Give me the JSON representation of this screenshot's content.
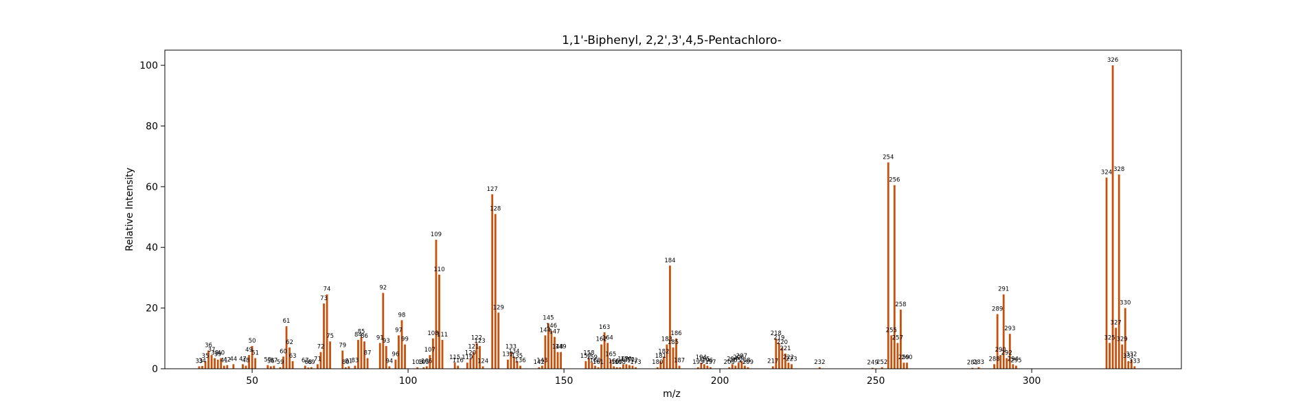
{
  "chart_data": {
    "type": "bar",
    "title": "1,1'-Biphenyl, 2,2',3',4,5-Pentachloro-",
    "xlabel": "m/z",
    "ylabel": "Relative Intensity",
    "xlim": [
      22,
      348
    ],
    "ylim": [
      0,
      105
    ],
    "xticks": [
      50,
      100,
      150,
      200,
      250,
      300
    ],
    "yticks": [
      0,
      20,
      40,
      60,
      80,
      100
    ],
    "grid": false,
    "colors": {
      "bar": "#c8500a"
    },
    "peaks": [
      {
        "mz": 33,
        "i": 0.8
      },
      {
        "mz": 34,
        "i": 0.9
      },
      {
        "mz": 35,
        "i": 2.5
      },
      {
        "mz": 36,
        "i": 6.0
      },
      {
        "mz": 37,
        "i": 4.5
      },
      {
        "mz": 38,
        "i": 3.5
      },
      {
        "mz": 39,
        "i": 3.0
      },
      {
        "mz": 40,
        "i": 3.5
      },
      {
        "mz": 41,
        "i": 1.0
      },
      {
        "mz": 42,
        "i": 1.2
      },
      {
        "mz": 44,
        "i": 1.5
      },
      {
        "mz": 47,
        "i": 1.5
      },
      {
        "mz": 48,
        "i": 1.0
      },
      {
        "mz": 49,
        "i": 4.5
      },
      {
        "mz": 50,
        "i": 7.5
      },
      {
        "mz": 51,
        "i": 3.5
      },
      {
        "mz": 55,
        "i": 1.2
      },
      {
        "mz": 56,
        "i": 0.8
      },
      {
        "mz": 57,
        "i": 1.0
      },
      {
        "mz": 59,
        "i": 0.5
      },
      {
        "mz": 60,
        "i": 4.0
      },
      {
        "mz": 61,
        "i": 14.0
      },
      {
        "mz": 62,
        "i": 7.0
      },
      {
        "mz": 63,
        "i": 2.5
      },
      {
        "mz": 67,
        "i": 1.0
      },
      {
        "mz": 68,
        "i": 0.4
      },
      {
        "mz": 69,
        "i": 0.5
      },
      {
        "mz": 71,
        "i": 1.5
      },
      {
        "mz": 72,
        "i": 5.5
      },
      {
        "mz": 73,
        "i": 21.5
      },
      {
        "mz": 74,
        "i": 24.5
      },
      {
        "mz": 75,
        "i": 9.0
      },
      {
        "mz": 79,
        "i": 6.0
      },
      {
        "mz": 80,
        "i": 0.5
      },
      {
        "mz": 81,
        "i": 0.8
      },
      {
        "mz": 83,
        "i": 1.0
      },
      {
        "mz": 84,
        "i": 9.5
      },
      {
        "mz": 85,
        "i": 10.5
      },
      {
        "mz": 86,
        "i": 9.0
      },
      {
        "mz": 87,
        "i": 3.5
      },
      {
        "mz": 91,
        "i": 8.5
      },
      {
        "mz": 92,
        "i": 25.0
      },
      {
        "mz": 93,
        "i": 7.5
      },
      {
        "mz": 94,
        "i": 0.8
      },
      {
        "mz": 96,
        "i": 3.0
      },
      {
        "mz": 97,
        "i": 11.0
      },
      {
        "mz": 98,
        "i": 16.0
      },
      {
        "mz": 99,
        "i": 8.0
      },
      {
        "mz": 103,
        "i": 0.5
      },
      {
        "mz": 105,
        "i": 0.5
      },
      {
        "mz": 106,
        "i": 0.8
      },
      {
        "mz": 107,
        "i": 4.5
      },
      {
        "mz": 108,
        "i": 10.0
      },
      {
        "mz": 109,
        "i": 42.5
      },
      {
        "mz": 110,
        "i": 31.0
      },
      {
        "mz": 111,
        "i": 9.5
      },
      {
        "mz": 115,
        "i": 2.0
      },
      {
        "mz": 116,
        "i": 1.0
      },
      {
        "mz": 119,
        "i": 2.0
      },
      {
        "mz": 120,
        "i": 3.5
      },
      {
        "mz": 121,
        "i": 5.5
      },
      {
        "mz": 122,
        "i": 8.5
      },
      {
        "mz": 123,
        "i": 7.5
      },
      {
        "mz": 124,
        "i": 0.8
      },
      {
        "mz": 127,
        "i": 57.5
      },
      {
        "mz": 128,
        "i": 51.0
      },
      {
        "mz": 129,
        "i": 18.5
      },
      {
        "mz": 132,
        "i": 3.0
      },
      {
        "mz": 133,
        "i": 5.5
      },
      {
        "mz": 134,
        "i": 4.0
      },
      {
        "mz": 135,
        "i": 2.5
      },
      {
        "mz": 136,
        "i": 1.0
      },
      {
        "mz": 142,
        "i": 0.5
      },
      {
        "mz": 143,
        "i": 1.0
      },
      {
        "mz": 144,
        "i": 11.0
      },
      {
        "mz": 145,
        "i": 15.0
      },
      {
        "mz": 146,
        "i": 12.5
      },
      {
        "mz": 147,
        "i": 10.5
      },
      {
        "mz": 148,
        "i": 5.5
      },
      {
        "mz": 149,
        "i": 5.5
      },
      {
        "mz": 157,
        "i": 2.5
      },
      {
        "mz": 158,
        "i": 3.5
      },
      {
        "mz": 159,
        "i": 2.0
      },
      {
        "mz": 160,
        "i": 1.0
      },
      {
        "mz": 161,
        "i": 0.5
      },
      {
        "mz": 162,
        "i": 8.0
      },
      {
        "mz": 163,
        "i": 12.0
      },
      {
        "mz": 164,
        "i": 8.5
      },
      {
        "mz": 165,
        "i": 3.0
      },
      {
        "mz": 166,
        "i": 0.8
      },
      {
        "mz": 167,
        "i": 0.5
      },
      {
        "mz": 168,
        "i": 0.5
      },
      {
        "mz": 169,
        "i": 1.5
      },
      {
        "mz": 170,
        "i": 1.5
      },
      {
        "mz": 171,
        "i": 1.2
      },
      {
        "mz": 172,
        "i": 1.0
      },
      {
        "mz": 173,
        "i": 0.5
      },
      {
        "mz": 180,
        "i": 0.5
      },
      {
        "mz": 181,
        "i": 2.5
      },
      {
        "mz": 182,
        "i": 4.0
      },
      {
        "mz": 183,
        "i": 8.0
      },
      {
        "mz": 184,
        "i": 34.0
      },
      {
        "mz": 185,
        "i": 7.0
      },
      {
        "mz": 186,
        "i": 10.0
      },
      {
        "mz": 187,
        "i": 1.0
      },
      {
        "mz": 193,
        "i": 0.5
      },
      {
        "mz": 194,
        "i": 2.0
      },
      {
        "mz": 195,
        "i": 1.5
      },
      {
        "mz": 196,
        "i": 1.0
      },
      {
        "mz": 197,
        "i": 0.5
      },
      {
        "mz": 203,
        "i": 0.5
      },
      {
        "mz": 204,
        "i": 1.5
      },
      {
        "mz": 205,
        "i": 1.0
      },
      {
        "mz": 206,
        "i": 2.0
      },
      {
        "mz": 207,
        "i": 2.5
      },
      {
        "mz": 208,
        "i": 1.0
      },
      {
        "mz": 209,
        "i": 0.5
      },
      {
        "mz": 217,
        "i": 0.8
      },
      {
        "mz": 218,
        "i": 10.0
      },
      {
        "mz": 219,
        "i": 8.5
      },
      {
        "mz": 220,
        "i": 7.0
      },
      {
        "mz": 221,
        "i": 5.0
      },
      {
        "mz": 222,
        "i": 2.0
      },
      {
        "mz": 223,
        "i": 1.5
      },
      {
        "mz": 232,
        "i": 0.5
      },
      {
        "mz": 249,
        "i": 0.3
      },
      {
        "mz": 252,
        "i": 0.5
      },
      {
        "mz": 254,
        "i": 68.0
      },
      {
        "mz": 255,
        "i": 11.0
      },
      {
        "mz": 256,
        "i": 60.5
      },
      {
        "mz": 257,
        "i": 8.5
      },
      {
        "mz": 258,
        "i": 19.5
      },
      {
        "mz": 259,
        "i": 2.0
      },
      {
        "mz": 260,
        "i": 2.0
      },
      {
        "mz": 281,
        "i": 0.3
      },
      {
        "mz": 283,
        "i": 0.5
      },
      {
        "mz": 288,
        "i": 1.5
      },
      {
        "mz": 289,
        "i": 18.0
      },
      {
        "mz": 290,
        "i": 4.5
      },
      {
        "mz": 291,
        "i": 24.5
      },
      {
        "mz": 292,
        "i": 3.5
      },
      {
        "mz": 293,
        "i": 11.5
      },
      {
        "mz": 294,
        "i": 1.5
      },
      {
        "mz": 295,
        "i": 1.0
      },
      {
        "mz": 324,
        "i": 63.0
      },
      {
        "mz": 325,
        "i": 8.5
      },
      {
        "mz": 326,
        "i": 100.0
      },
      {
        "mz": 327,
        "i": 13.5
      },
      {
        "mz": 328,
        "i": 64.0
      },
      {
        "mz": 329,
        "i": 8.0
      },
      {
        "mz": 330,
        "i": 20.0
      },
      {
        "mz": 331,
        "i": 2.5
      },
      {
        "mz": 332,
        "i": 3.0
      },
      {
        "mz": 333,
        "i": 0.8
      }
    ]
  }
}
